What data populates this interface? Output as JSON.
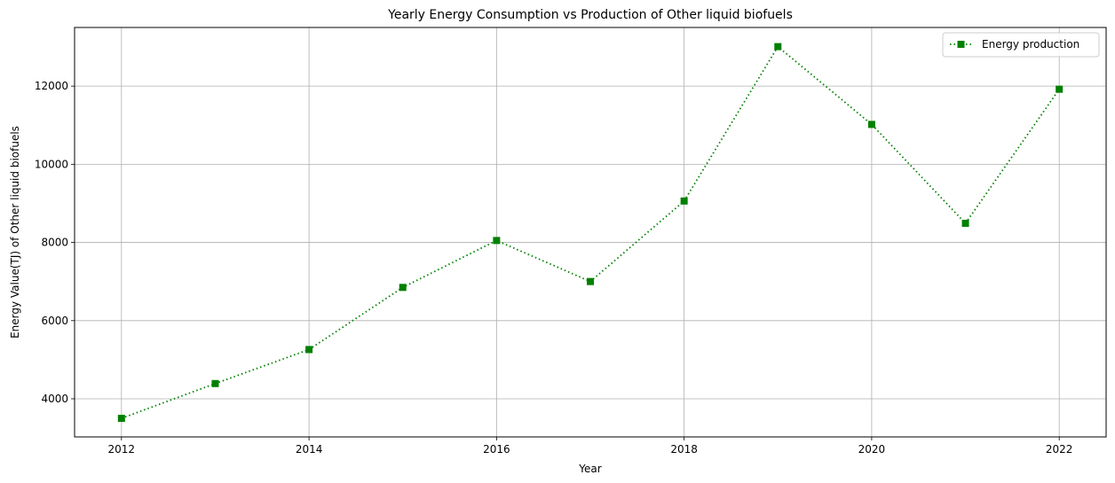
{
  "chart_data": {
    "type": "line",
    "title": "Yearly Energy Consumption vs Production of Other liquid biofuels",
    "xlabel": "Year",
    "ylabel": "Energy Value(TJ) of Other liquid biofuels",
    "x": [
      2012,
      2013,
      2014,
      2015,
      2016,
      2017,
      2018,
      2019,
      2020,
      2021,
      2022
    ],
    "series": [
      {
        "name": "Energy production",
        "values": [
          3500,
          4390,
          5260,
          6850,
          8050,
          7000,
          9060,
          13010,
          11020,
          8490,
          11920
        ],
        "color": "#008000",
        "line_style": "dotted",
        "marker": "square"
      }
    ],
    "xlim": [
      2011.5,
      2022.5
    ],
    "ylim": [
      3025,
      13500
    ],
    "xticks": [
      2012,
      2014,
      2016,
      2018,
      2020,
      2022
    ],
    "xtick_labels": [
      "2012",
      "2014",
      "2016",
      "2018",
      "2020",
      "2022"
    ],
    "yticks": [
      4000,
      6000,
      8000,
      10000,
      12000
    ],
    "ytick_labels": [
      "4000",
      "6000",
      "8000",
      "10000",
      "12000"
    ],
    "grid": true,
    "legend_position": "top-right"
  }
}
